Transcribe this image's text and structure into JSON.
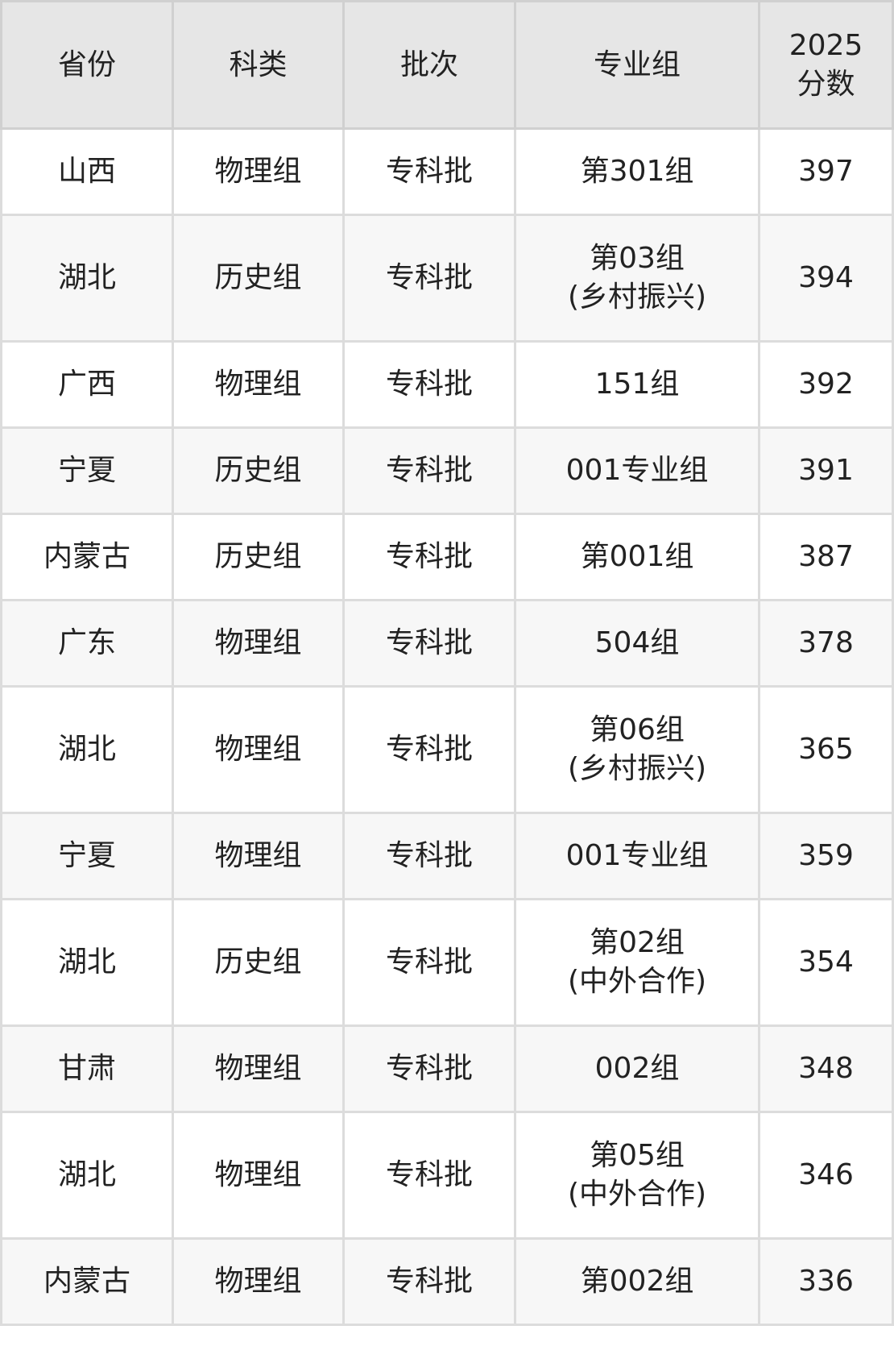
{
  "table": {
    "headers": [
      "省份",
      "科类",
      "批次",
      "专业组",
      "2025\n分数"
    ],
    "header_score_lines": [
      "2025",
      "分数"
    ],
    "rows": [
      {
        "province": "山西",
        "subject": "物理组",
        "batch": "专科批",
        "group": [
          "第301组"
        ],
        "score": "397"
      },
      {
        "province": "湖北",
        "subject": "历史组",
        "batch": "专科批",
        "group": [
          "第03组",
          "(乡村振兴)"
        ],
        "score": "394"
      },
      {
        "province": "广西",
        "subject": "物理组",
        "batch": "专科批",
        "group": [
          "151组"
        ],
        "score": "392"
      },
      {
        "province": "宁夏",
        "subject": "历史组",
        "batch": "专科批",
        "group": [
          "001专业组"
        ],
        "score": "391"
      },
      {
        "province": "内蒙古",
        "subject": "历史组",
        "batch": "专科批",
        "group": [
          "第001组"
        ],
        "score": "387"
      },
      {
        "province": "广东",
        "subject": "物理组",
        "batch": "专科批",
        "group": [
          "504组"
        ],
        "score": "378"
      },
      {
        "province": "湖北",
        "subject": "物理组",
        "batch": "专科批",
        "group": [
          "第06组",
          "(乡村振兴)"
        ],
        "score": "365"
      },
      {
        "province": "宁夏",
        "subject": "物理组",
        "batch": "专科批",
        "group": [
          "001专业组"
        ],
        "score": "359"
      },
      {
        "province": "湖北",
        "subject": "历史组",
        "batch": "专科批",
        "group": [
          "第02组",
          "(中外合作)"
        ],
        "score": "354"
      },
      {
        "province": "甘肃",
        "subject": "物理组",
        "batch": "专科批",
        "group": [
          "002组"
        ],
        "score": "348"
      },
      {
        "province": "湖北",
        "subject": "物理组",
        "batch": "专科批",
        "group": [
          "第05组",
          "(中外合作)"
        ],
        "score": "346"
      },
      {
        "province": "内蒙古",
        "subject": "物理组",
        "batch": "专科批",
        "group": [
          "第002组"
        ],
        "score": "336"
      }
    ]
  },
  "colors": {
    "header_bg": "#e6e6e6",
    "alt_row_bg": "#f7f7f7",
    "border": "#dcdcdc",
    "text": "#222222"
  }
}
